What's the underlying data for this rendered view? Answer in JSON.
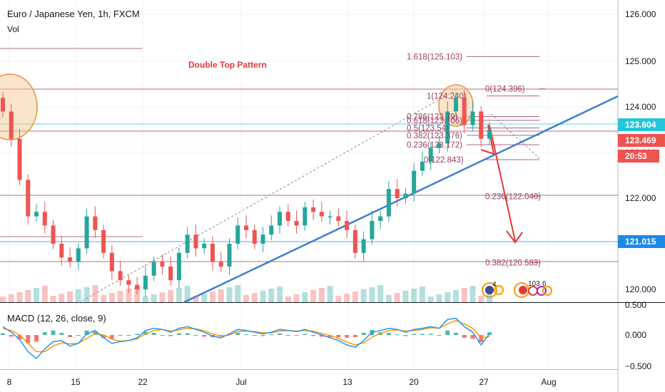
{
  "header": {
    "title": "Euro / Japanese Yen, 1h, FXCM",
    "volume_label": "Vol",
    "macd_label": "MACD (12, 26, close, 9)"
  },
  "colors": {
    "up": "#26a69a",
    "down": "#ef5350",
    "trendline": "#3f7fd6",
    "fib": "#9c3d62",
    "projection": "#e53935",
    "macd": "#2196f3",
    "signal": "#ff9800",
    "support": "#1e88e5"
  },
  "annotations": {
    "pattern_label": "Double Top Pattern",
    "badge_1": "4",
    "badge_2": "103",
    "badge_3": "6"
  },
  "price_tags": {
    "current": "123.604",
    "bid": "123.469",
    "countdown": "20:53",
    "support": "121.015"
  },
  "chart_data": {
    "type": "candlestick",
    "title": "Euro / Japanese Yen, 1h, FXCM",
    "xlabel": "",
    "ylabel": "",
    "ylim": [
      119.9,
      126.4
    ],
    "x_ticks": [
      "8",
      "15",
      "22",
      "Jul",
      "13",
      "20",
      "27",
      "Aug"
    ],
    "y_ticks": [
      "120.000",
      "121.000",
      "122.000",
      "123.000",
      "124.000",
      "125.000",
      "126.000"
    ],
    "macd_ticks": [
      "0.000",
      "−0.500",
      "0.500"
    ],
    "fib_levels": [
      {
        "label": "1.618(125.103)",
        "value": 125.103
      },
      {
        "label": "0(124.396)",
        "value": 124.396
      },
      {
        "label": "1(124.240)",
        "value": 124.24
      },
      {
        "label": "0.786(123.79)",
        "value": 123.79
      },
      {
        "label": "0.618(123.706)",
        "value": 123.706
      },
      {
        "label": "0.5(123.54)",
        "value": 123.54
      },
      {
        "label": "0.382(123.376)",
        "value": 123.376
      },
      {
        "label": "0.236(123.172)",
        "value": 123.172
      },
      {
        "label": "0(122.843)",
        "value": 122.843
      },
      {
        "label": "0.236(122.040)",
        "value": 122.04
      },
      {
        "label": "0.382(120.583)",
        "value": 120.583
      }
    ],
    "series": [
      {
        "name": "Price",
        "values": [
          123.9,
          123.3,
          122.4,
          121.6,
          121.7,
          121.4,
          121.0,
          120.7,
          120.6,
          120.9,
          121.6,
          121.3,
          120.8,
          120.4,
          120.2,
          120.1,
          120.0,
          120.3,
          120.6,
          120.5,
          120.2,
          120.8,
          121.2,
          120.9,
          121.0,
          120.6,
          120.5,
          121.0,
          121.4,
          121.3,
          121.0,
          121.2,
          121.4,
          121.7,
          121.5,
          121.4,
          121.8,
          121.7,
          121.6,
          121.6,
          121.5,
          121.3,
          120.8,
          121.1,
          121.5,
          121.6,
          122.2,
          122.0,
          122.1,
          122.6,
          122.8,
          123.1,
          123.2,
          123.9,
          124.2,
          123.6,
          123.9,
          123.3,
          123.5
        ]
      },
      {
        "name": "MACD",
        "values": [
          0.15,
          0.05,
          -0.08,
          -0.3,
          -0.42,
          -0.25,
          -0.12,
          -0.1,
          -0.2,
          -0.15,
          0.02,
          0.08,
          -0.05,
          -0.15,
          -0.12,
          -0.1,
          -0.05,
          0.08,
          0.12,
          0.1,
          0.05,
          0.12,
          0.15,
          0.1,
          0.05,
          -0.02,
          -0.05,
          0.02,
          0.1,
          0.08,
          0.05,
          0.02,
          0.05,
          0.1,
          0.08,
          0.06,
          0.1,
          0.05,
          0.0,
          -0.05,
          -0.1,
          -0.18,
          -0.22,
          -0.1,
          0.05,
          0.08,
          0.12,
          0.1,
          0.05,
          0.1,
          0.12,
          0.15,
          0.12,
          0.28,
          0.3,
          0.15,
          0.05,
          -0.18,
          0.02
        ]
      },
      {
        "name": "Signal",
        "values": [
          0.12,
          0.08,
          0.0,
          -0.15,
          -0.3,
          -0.3,
          -0.2,
          -0.14,
          -0.16,
          -0.15,
          -0.06,
          0.02,
          0.0,
          -0.08,
          -0.11,
          -0.1,
          -0.07,
          0.02,
          0.08,
          0.1,
          0.07,
          0.09,
          0.12,
          0.11,
          0.08,
          0.02,
          -0.02,
          0.0,
          0.06,
          0.07,
          0.06,
          0.04,
          0.04,
          0.07,
          0.08,
          0.07,
          0.08,
          0.07,
          0.03,
          -0.01,
          -0.06,
          -0.13,
          -0.18,
          -0.14,
          -0.04,
          0.03,
          0.08,
          0.09,
          0.07,
          0.08,
          0.1,
          0.13,
          0.12,
          0.2,
          0.26,
          0.2,
          0.12,
          -0.05,
          -0.03
        ]
      }
    ]
  }
}
